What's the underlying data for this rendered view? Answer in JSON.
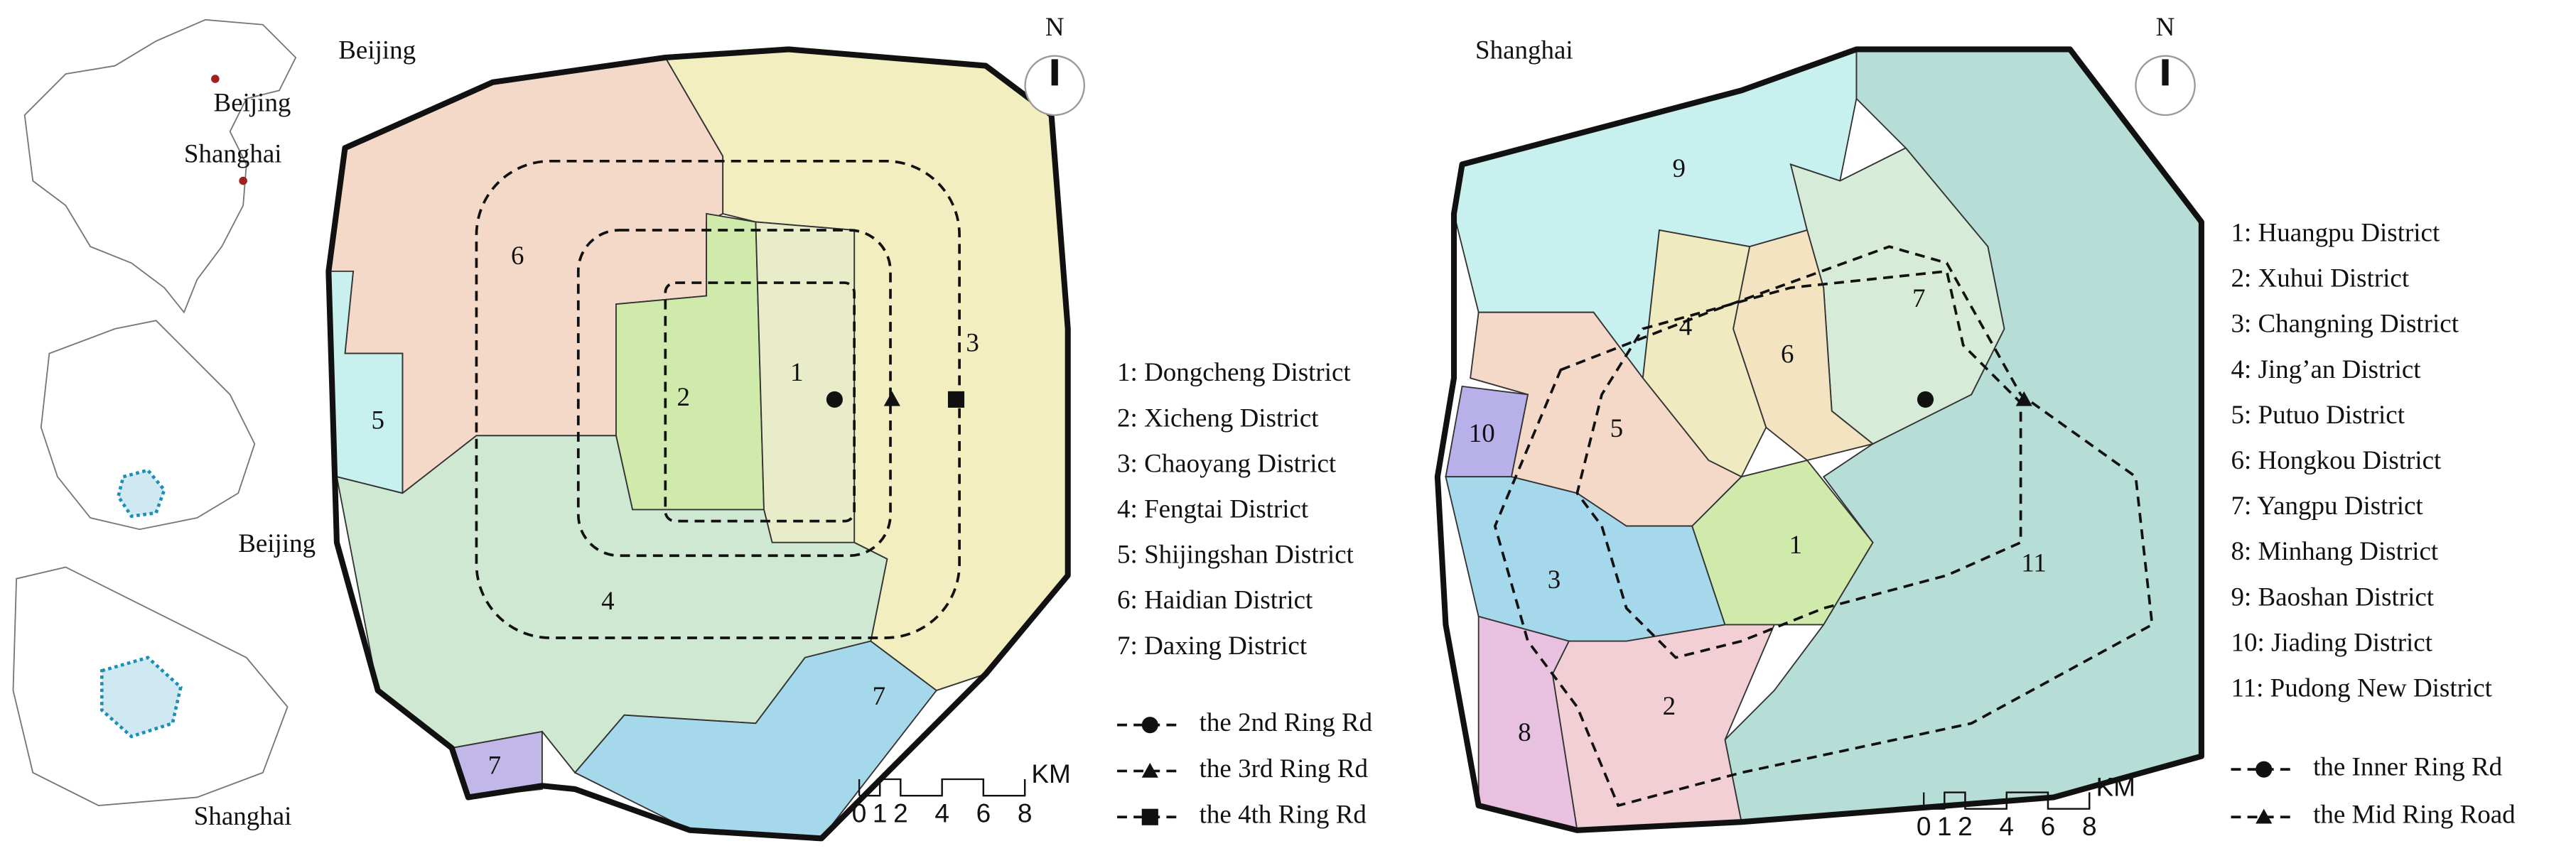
{
  "insets": {
    "china_labels": [
      "Beijing",
      "Shanghai"
    ],
    "captions": [
      "Beijing",
      "Shanghai"
    ]
  },
  "maps": [
    {
      "title": "Beijing",
      "north": "N",
      "district_labels": [
        "1",
        "2",
        "3",
        "4",
        "5",
        "6",
        "7",
        "7"
      ],
      "legend": [
        "1: Dongcheng District",
        "2: Xicheng District",
        "3: Chaoyang District",
        "4: Fengtai District",
        "5: Shijingshan District",
        "6: Haidian District",
        "7: Daxing District"
      ],
      "ring_roads": [
        "the 2nd Ring Rd",
        "the 3rd Ring Rd",
        "the 4th Ring Rd"
      ],
      "scale": {
        "ticks": [
          0,
          1,
          2,
          4,
          6,
          8
        ],
        "unit": "KM"
      }
    },
    {
      "title": "Shanghai",
      "north": "N",
      "district_labels": [
        "1",
        "2",
        "3",
        "4",
        "5",
        "6",
        "7",
        "8",
        "9",
        "10",
        "11"
      ],
      "legend": [
        "1: Huangpu District",
        "2: Xuhui District",
        "3: Changning District",
        "4: Jing’an District",
        "5: Putuo District",
        "6: Hongkou District",
        "7: Yangpu District",
        "8: Minhang District",
        "9: Baoshan District",
        "10: Jiading District",
        "11: Pudong New District"
      ],
      "ring_roads": [
        "the Inner Ring Rd",
        "the Mid Ring Road"
      ],
      "scale": {
        "ticks": [
          0,
          1,
          2,
          4,
          6,
          8
        ],
        "unit": "KM"
      }
    }
  ]
}
